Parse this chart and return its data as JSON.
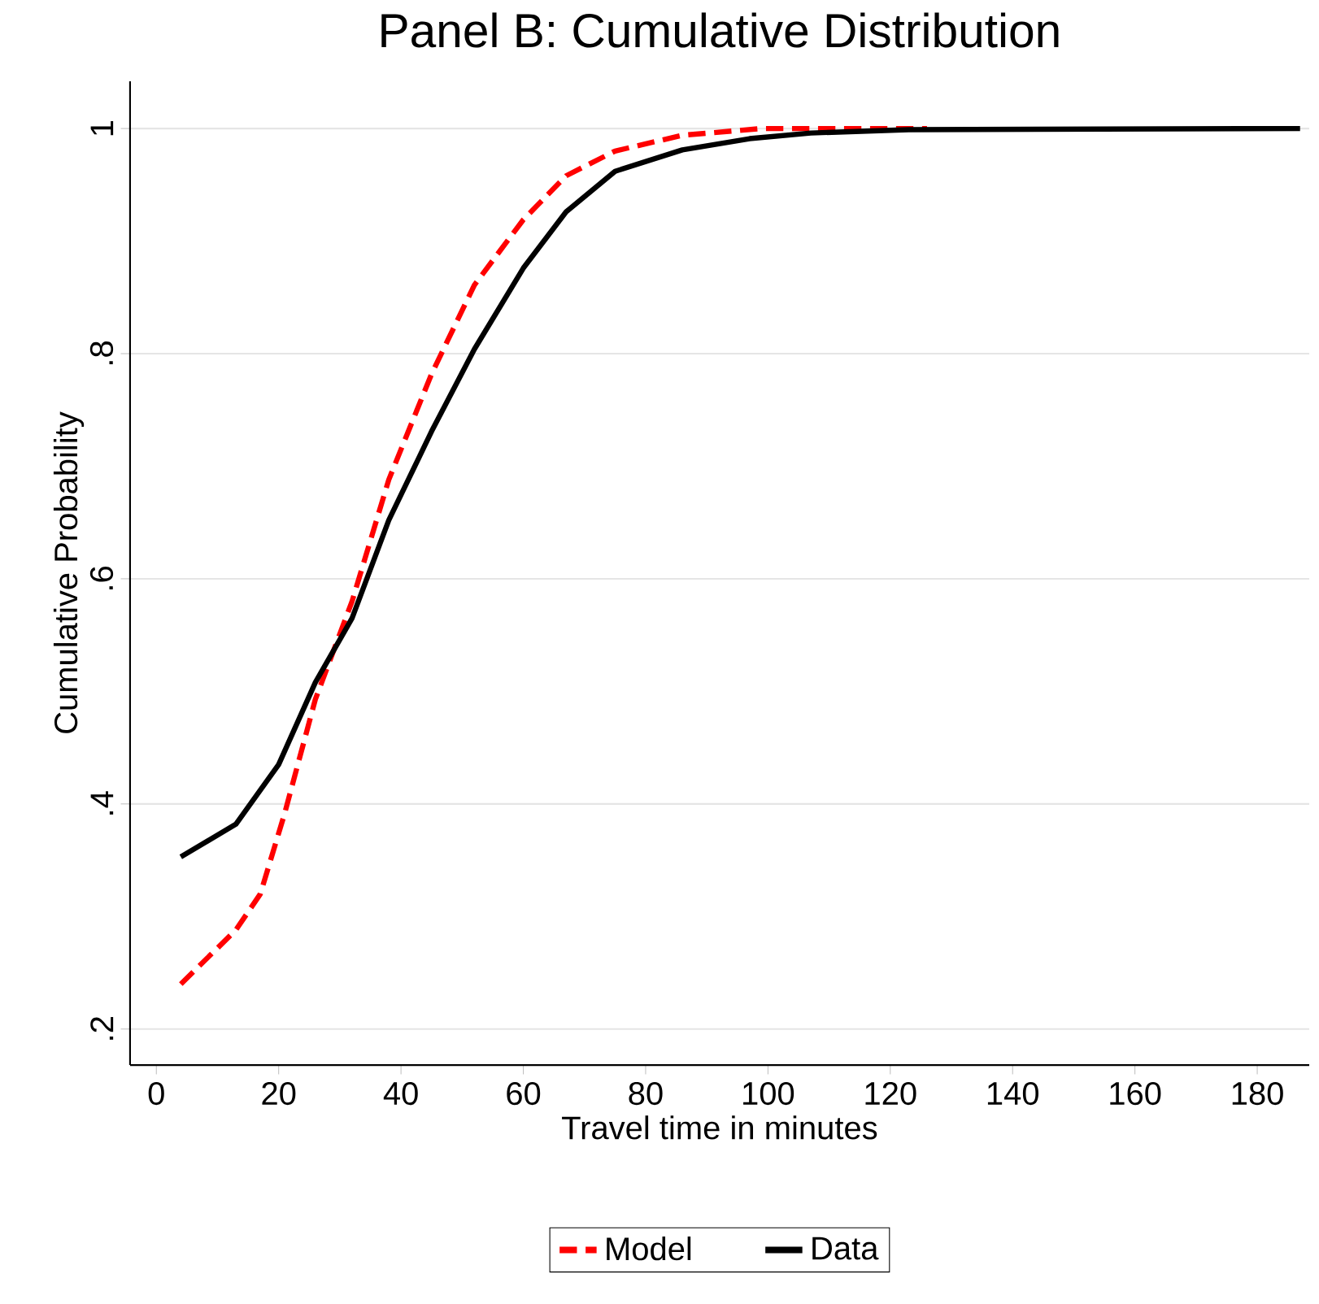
{
  "chart_data": {
    "type": "line",
    "title": "Panel B: Cumulative Distribution",
    "xlabel": "Travel time in minutes",
    "ylabel": "Cumulative Probability",
    "xlim": [
      -4.3,
      188.5
    ],
    "ylim": [
      0.168,
      1.042
    ],
    "xticks": [
      0,
      20,
      40,
      60,
      80,
      100,
      120,
      140,
      160,
      180
    ],
    "yticks": [
      {
        "value": 0.2,
        "label": ".2"
      },
      {
        "value": 0.4,
        "label": ".4"
      },
      {
        "value": 0.6,
        "label": ".6"
      },
      {
        "value": 0.8,
        "label": ".8"
      },
      {
        "value": 1,
        "label": "1"
      }
    ],
    "grid": "y",
    "legend": "bottom",
    "series": [
      {
        "name": "Model",
        "color": "#ff0000",
        "line_style": "dashed",
        "x": [
          4,
          13,
          17,
          21,
          26,
          32,
          38,
          45,
          52,
          60,
          67,
          75,
          86,
          99,
          126
        ],
        "values": [
          0.24,
          0.288,
          0.32,
          0.392,
          0.493,
          0.58,
          0.688,
          0.782,
          0.861,
          0.919,
          0.958,
          0.98,
          0.994,
          1.0,
          1.0
        ]
      },
      {
        "name": "Data",
        "color": "#000000",
        "line_style": "solid",
        "x": [
          4,
          13,
          20,
          26,
          32,
          38,
          45,
          52,
          60,
          67,
          75,
          86,
          97,
          107,
          123,
          187
        ],
        "values": [
          0.353,
          0.382,
          0.435,
          0.508,
          0.565,
          0.652,
          0.731,
          0.804,
          0.876,
          0.926,
          0.962,
          0.981,
          0.991,
          0.996,
          0.999,
          1.0
        ]
      }
    ]
  }
}
